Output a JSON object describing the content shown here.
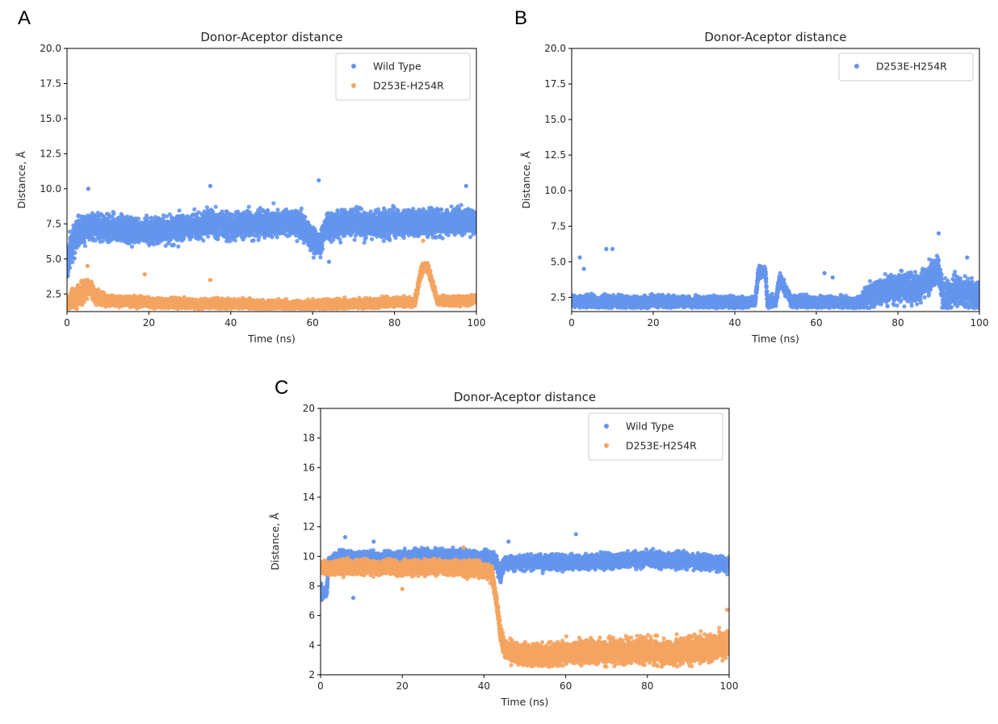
{
  "panel_labels": [
    "A",
    "B",
    "C"
  ],
  "colors": {
    "wild_type": "#6495ED",
    "mutant": "#F4A460",
    "axis": "#000000",
    "text": "#262626"
  },
  "chart_data": [
    {
      "panel": "A",
      "type": "scatter",
      "title": "Donor-Aceptor distance",
      "xlabel": "Time (ns)",
      "ylabel": "Distance, Å",
      "xlim": [
        0,
        100
      ],
      "ylim": [
        1.25,
        20.0
      ],
      "xticks": [
        0,
        20,
        40,
        60,
        80,
        100
      ],
      "yticks": [
        2.5,
        5.0,
        7.5,
        10.0,
        12.5,
        15.0,
        17.5,
        20.0
      ],
      "ytick_format": "1",
      "grid": false,
      "legend_position": "top-right",
      "series": [
        {
          "name": "Wild Type",
          "color": "#6495ED",
          "points_per_ns": 60,
          "trace": [
            [
              0,
              4.2
            ],
            [
              1,
              6.0
            ],
            [
              3,
              7.0
            ],
            [
              6,
              7.4
            ],
            [
              10,
              7.2
            ],
            [
              15,
              7.0
            ],
            [
              20,
              7.0
            ],
            [
              25,
              7.1
            ],
            [
              30,
              7.3
            ],
            [
              35,
              7.5
            ],
            [
              40,
              7.3
            ],
            [
              45,
              7.5
            ],
            [
              50,
              7.6
            ],
            [
              55,
              7.6
            ],
            [
              58,
              7.2
            ],
            [
              60,
              6.2
            ],
            [
              62,
              6.0
            ],
            [
              63,
              7.3
            ],
            [
              70,
              7.6
            ],
            [
              75,
              7.4
            ],
            [
              80,
              7.6
            ],
            [
              85,
              7.6
            ],
            [
              90,
              7.6
            ],
            [
              95,
              7.7
            ],
            [
              100,
              7.6
            ]
          ],
          "spread": [
            [
              0,
              1.1
            ],
            [
              5,
              0.8
            ],
            [
              100,
              0.8
            ]
          ],
          "outliers": [
            [
              61.5,
              10.6
            ],
            [
              97.5,
              10.2
            ],
            [
              5.2,
              10.0
            ],
            [
              35,
              10.2
            ],
            [
              64,
              4.8
            ]
          ]
        },
        {
          "name": "D253E-H254R",
          "color": "#F4A460",
          "points_per_ns": 60,
          "floor": 1.45,
          "trace": [
            [
              0,
              1.9
            ],
            [
              3,
              2.4
            ],
            [
              5,
              3.0
            ],
            [
              7,
              2.3
            ],
            [
              10,
              2.0
            ],
            [
              20,
              1.9
            ],
            [
              30,
              1.8
            ],
            [
              40,
              1.8
            ],
            [
              50,
              1.7
            ],
            [
              60,
              1.7
            ],
            [
              70,
              1.8
            ],
            [
              80,
              1.9
            ],
            [
              85,
              1.9
            ],
            [
              86.5,
              4.2
            ],
            [
              88,
              4.5
            ],
            [
              89.5,
              3.0
            ],
            [
              90.5,
              2.0
            ],
            [
              95,
              2.0
            ],
            [
              100,
              2.1
            ]
          ],
          "spread": [
            [
              0,
              0.35
            ],
            [
              3,
              0.8
            ],
            [
              7,
              0.45
            ],
            [
              12,
              0.3
            ],
            [
              100,
              0.3
            ]
          ],
          "outliers": [
            [
              87,
              6.3
            ],
            [
              19,
              3.9
            ],
            [
              35,
              3.5
            ],
            [
              5,
              4.5
            ]
          ]
        }
      ]
    },
    {
      "panel": "B",
      "type": "scatter",
      "title": "Donor-Aceptor distance",
      "xlabel": "Time (ns)",
      "ylabel": "Distance, Å",
      "xlim": [
        0,
        100
      ],
      "ylim": [
        1.5,
        20.0
      ],
      "xticks": [
        0,
        20,
        40,
        60,
        80,
        100
      ],
      "yticks": [
        2.5,
        5.0,
        7.5,
        10.0,
        12.5,
        15.0,
        17.5,
        20.0
      ],
      "ytick_format": "1",
      "grid": false,
      "legend_position": "top-right",
      "series": [
        {
          "name": "D253E-H254R",
          "color": "#6495ED",
          "points_per_ns": 60,
          "floor": 1.75,
          "trace": [
            [
              0,
              2.2
            ],
            [
              20,
              2.2
            ],
            [
              40,
              2.1
            ],
            [
              45,
              2.2
            ],
            [
              45.8,
              4.3
            ],
            [
              47.5,
              4.3
            ],
            [
              48,
              2.2
            ],
            [
              50,
              2.2
            ],
            [
              51,
              3.8
            ],
            [
              54,
              2.2
            ],
            [
              70,
              2.1
            ],
            [
              73,
              2.6
            ],
            [
              76,
              3.0
            ],
            [
              80,
              3.2
            ],
            [
              85,
              3.2
            ],
            [
              88,
              3.9
            ],
            [
              90,
              4.4
            ],
            [
              91,
              2.5
            ],
            [
              95,
              3.0
            ],
            [
              100,
              2.5
            ]
          ],
          "spread": [
            [
              0,
              0.35
            ],
            [
              70,
              0.35
            ],
            [
              73,
              0.8
            ],
            [
              100,
              0.9
            ]
          ],
          "outliers": [
            [
              2,
              5.3
            ],
            [
              8.5,
              5.9
            ],
            [
              10,
              5.9
            ],
            [
              3,
              4.5
            ],
            [
              90,
              7.0
            ],
            [
              97,
              5.3
            ],
            [
              62,
              4.2
            ],
            [
              64,
              3.9
            ]
          ]
        }
      ]
    },
    {
      "panel": "C",
      "type": "scatter",
      "title": "Donor-Aceptor distance",
      "xlabel": "Time (ns)",
      "ylabel": "Distance, Å",
      "xlim": [
        0,
        100
      ],
      "ylim": [
        2,
        20
      ],
      "xticks": [
        0,
        20,
        40,
        60,
        80,
        100
      ],
      "yticks": [
        2,
        4,
        6,
        8,
        10,
        12,
        14,
        16,
        18,
        20
      ],
      "ytick_format": "0",
      "grid": false,
      "legend_position": "top-right",
      "series": [
        {
          "name": "Wild Type",
          "color": "#6495ED",
          "points_per_ns": 60,
          "trace": [
            [
              0,
              7.6
            ],
            [
              1.5,
              7.6
            ],
            [
              2,
              9.5
            ],
            [
              5,
              10.0
            ],
            [
              10,
              9.8
            ],
            [
              20,
              9.9
            ],
            [
              30,
              10.0
            ],
            [
              40,
              9.9
            ],
            [
              43,
              9.7
            ],
            [
              44,
              8.6
            ],
            [
              45,
              9.6
            ],
            [
              50,
              9.6
            ],
            [
              60,
              9.6
            ],
            [
              70,
              9.7
            ],
            [
              80,
              9.8
            ],
            [
              90,
              9.7
            ],
            [
              100,
              9.5
            ]
          ],
          "spread": [
            [
              0,
              0.4
            ],
            [
              100,
              0.45
            ]
          ],
          "outliers": [
            [
              6,
              11.3
            ],
            [
              62.5,
              11.5
            ],
            [
              13,
              11.0
            ],
            [
              46,
              11.0
            ],
            [
              8,
              7.2
            ]
          ]
        },
        {
          "name": "D253E-H254R",
          "color": "#F4A460",
          "points_per_ns": 60,
          "floor": 2.55,
          "trace": [
            [
              0,
              9.2
            ],
            [
              10,
              9.3
            ],
            [
              20,
              9.2
            ],
            [
              30,
              9.3
            ],
            [
              40,
              9.1
            ],
            [
              42,
              8.8
            ],
            [
              43,
              7.0
            ],
            [
              44,
              5.0
            ],
            [
              45,
              3.8
            ],
            [
              48,
              3.4
            ],
            [
              55,
              3.3
            ],
            [
              60,
              3.5
            ],
            [
              70,
              3.6
            ],
            [
              80,
              3.6
            ],
            [
              85,
              3.5
            ],
            [
              90,
              3.7
            ],
            [
              95,
              3.8
            ],
            [
              100,
              4.2
            ]
          ],
          "spread": [
            [
              0,
              0.4
            ],
            [
              42,
              0.45
            ],
            [
              45,
              0.6
            ],
            [
              100,
              0.8
            ]
          ],
          "outliers": [
            [
              35,
              10.6
            ],
            [
              20,
              7.8
            ],
            [
              99.5,
              6.4
            ],
            [
              43.5,
              6.2
            ]
          ]
        }
      ]
    }
  ]
}
